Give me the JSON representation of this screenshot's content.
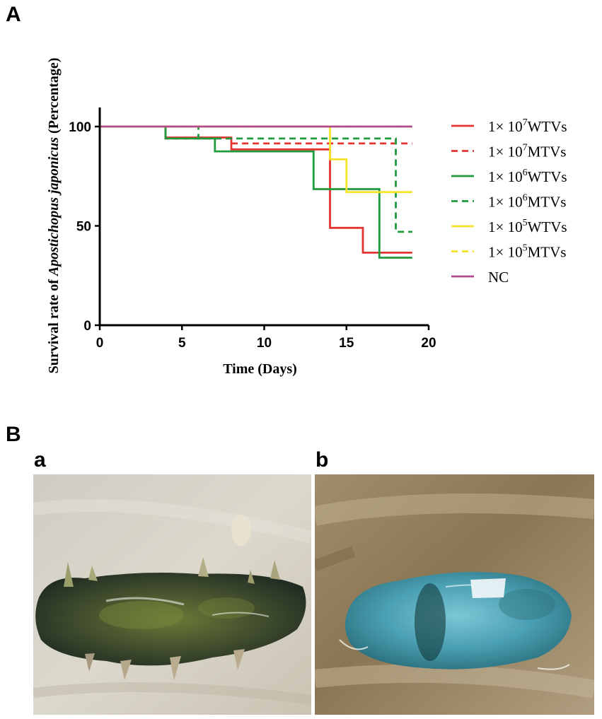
{
  "panels": {
    "A": "A",
    "B": "B",
    "a": "a",
    "b": "b"
  },
  "chart_data": {
    "type": "line",
    "step": true,
    "xlabel": "Time (Days)",
    "ylabel": {
      "prefix": "Survival rate of ",
      "italic": "Apostichopus japonicus",
      "suffix": " (Percentage)"
    },
    "xlim": [
      0,
      20
    ],
    "ylim": [
      0,
      100
    ],
    "x_ticks": [
      0,
      5,
      10,
      15,
      20
    ],
    "y_ticks": [
      0,
      50,
      100
    ],
    "grid": false,
    "legend_position": "right",
    "series": [
      {
        "name": "1× 10^7WTVs",
        "label_base": "1× 10",
        "label_exp": "7",
        "label_tail": "WTVs",
        "color": "#e3342f",
        "dash": "solid",
        "points": [
          [
            0,
            100
          ],
          [
            4,
            100
          ],
          [
            4,
            94.5
          ],
          [
            8,
            94.5
          ],
          [
            8,
            88.5
          ],
          [
            14,
            88.5
          ],
          [
            14,
            49
          ],
          [
            16,
            49
          ],
          [
            16,
            36.5
          ],
          [
            19,
            36.5
          ]
        ]
      },
      {
        "name": "1× 10^7MTVs",
        "label_base": "1× 10",
        "label_exp": "7",
        "label_tail": "MTVs",
        "color": "#e3342f",
        "dash": "dashed",
        "points": [
          [
            0,
            100
          ],
          [
            4,
            100
          ],
          [
            4,
            94
          ],
          [
            8,
            94
          ],
          [
            8,
            91.5
          ],
          [
            19,
            91.5
          ]
        ]
      },
      {
        "name": "1× 10^6WTVs",
        "label_base": "1× 10",
        "label_exp": "6",
        "label_tail": "WTVs",
        "color": "#1f9a3c",
        "dash": "solid",
        "points": [
          [
            0,
            100
          ],
          [
            4,
            100
          ],
          [
            4,
            94
          ],
          [
            7,
            94
          ],
          [
            7,
            87.5
          ],
          [
            13,
            87.5
          ],
          [
            13,
            68.5
          ],
          [
            17,
            68.5
          ],
          [
            17,
            34
          ],
          [
            19,
            34
          ]
        ]
      },
      {
        "name": "1× 10^6MTVs",
        "label_base": "1× 10",
        "label_exp": "6",
        "label_tail": "MTVs",
        "color": "#1f9a3c",
        "dash": "dashed",
        "points": [
          [
            0,
            100
          ],
          [
            6,
            100
          ],
          [
            6,
            94
          ],
          [
            18,
            94
          ],
          [
            18,
            47
          ],
          [
            19,
            47
          ]
        ]
      },
      {
        "name": "1× 10^5WTVs",
        "label_base": "1× 10",
        "label_exp": "5",
        "label_tail": "WTVs",
        "color": "#f5e42a",
        "dash": "solid",
        "points": [
          [
            0,
            100
          ],
          [
            14,
            100
          ],
          [
            14,
            83.5
          ],
          [
            15,
            83.5
          ],
          [
            15,
            67
          ],
          [
            19,
            67
          ]
        ]
      },
      {
        "name": "1× 10^5MTVs",
        "label_base": "1× 10",
        "label_exp": "5",
        "label_tail": "MTVs",
        "color": "#f5e42a",
        "dash": "dashed",
        "points": [
          [
            0,
            100
          ],
          [
            19,
            100
          ]
        ]
      },
      {
        "name": "NC",
        "label_base": "NC",
        "label_exp": "",
        "label_tail": "",
        "color": "#b04a8e",
        "dash": "solid",
        "points": [
          [
            0,
            100
          ],
          [
            19,
            100
          ]
        ]
      }
    ]
  },
  "photos": {
    "a": {
      "subject": "sea-cucumber",
      "colors": {
        "background": "#d9d5c9",
        "body": "#3f4a2e"
      }
    },
    "b": {
      "subject": "sea-cucumber-stained",
      "colors": {
        "background": "#8b7a5c",
        "body": "#4aa0b3"
      }
    }
  }
}
